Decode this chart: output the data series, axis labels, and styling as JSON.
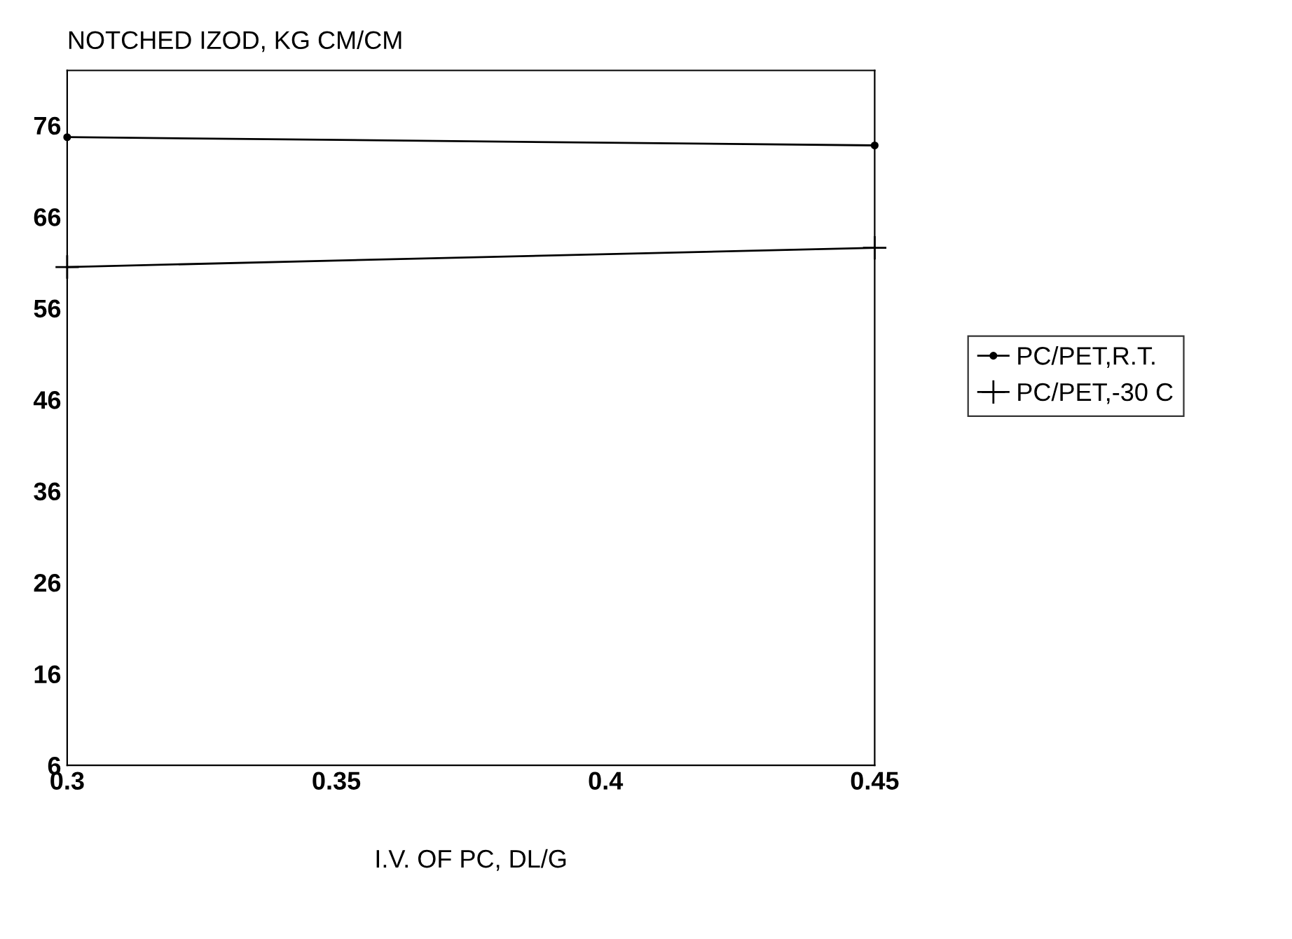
{
  "chart_data": {
    "type": "line",
    "title": "NOTCHED IZOD, KG CM/CM",
    "xlabel": "I.V. OF PC, DL/G",
    "x": [
      0.3,
      0.45
    ],
    "series": [
      {
        "name": "PC/PET,R.T.",
        "color": "#000000",
        "values": [
          74.7,
          73.8
        ],
        "marker": "circle"
      },
      {
        "name": "PC/PET,-30 C",
        "color": "#000000",
        "values": [
          60.5,
          62.6
        ],
        "marker": "cross"
      }
    ],
    "xlim": [
      0.3,
      0.45
    ],
    "xticks": [
      0.3,
      0.35,
      0.4,
      0.45
    ],
    "ylim": [
      6,
      82
    ],
    "yticks": [
      6,
      16,
      26,
      36,
      46,
      56,
      66,
      76
    ],
    "grid": false,
    "legend": "right",
    "line_style": "solid"
  }
}
